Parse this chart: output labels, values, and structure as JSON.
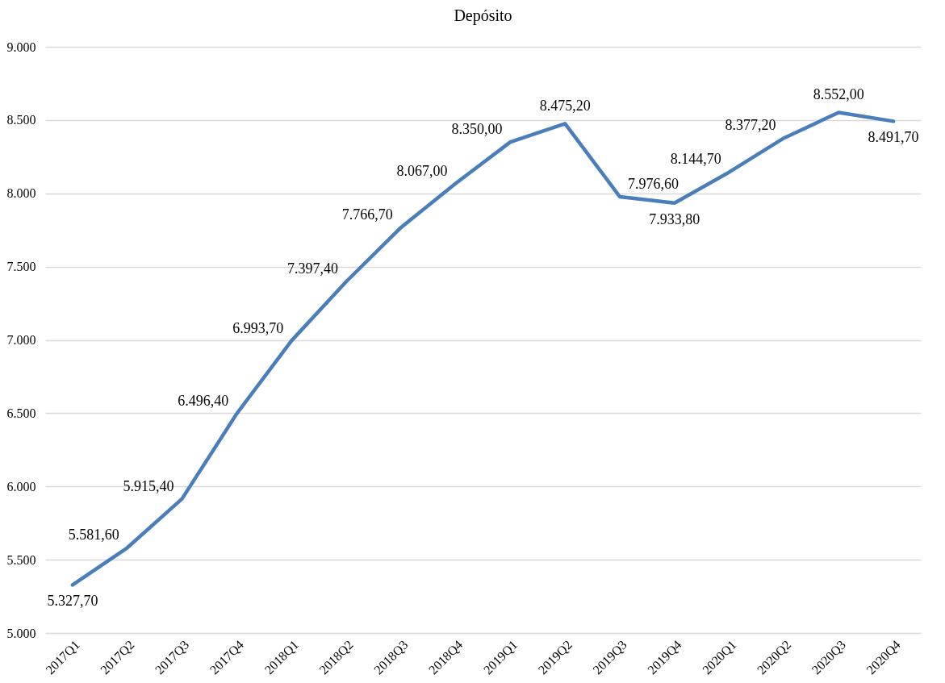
{
  "chart_data": {
    "type": "line",
    "title": "Depósito",
    "categories": [
      "2017Q1",
      "2017Q2",
      "2017Q3",
      "2017Q4",
      "2018Q1",
      "2018Q2",
      "2018Q3",
      "2018Q4",
      "2019Q1",
      "2019Q2",
      "2019Q3",
      "2019Q4",
      "2020Q1",
      "2020Q2",
      "2020Q3",
      "2020Q4"
    ],
    "series": [
      {
        "color": "#4a7ebb",
        "values": [
          5327.7,
          5581.6,
          5915.4,
          6496.4,
          6993.7,
          7397.4,
          7766.7,
          8067.0,
          8350.0,
          8475.2,
          7976.6,
          7933.8,
          8144.7,
          8377.2,
          8552.0,
          8491.7
        ],
        "value_labels": [
          "5.327,70",
          "5.581,60",
          "5.915,40",
          "6.496,40",
          "6.993,70",
          "7.397,40",
          "7.766,70",
          "8.067,00",
          "8.350,00",
          "8.475,20",
          "7.976,60",
          "7.933,80",
          "8.144,70",
          "8.377,20",
          "8.552,00",
          "8.491,70"
        ]
      }
    ],
    "ylim": [
      5000,
      9000
    ],
    "yticks": [
      {
        "value": 5000,
        "label": "5.000"
      },
      {
        "value": 5500,
        "label": "5.500"
      },
      {
        "value": 6000,
        "label": "6.000"
      },
      {
        "value": 6500,
        "label": "6.500"
      },
      {
        "value": 7000,
        "label": "7.000"
      },
      {
        "value": 7500,
        "label": "7.500"
      },
      {
        "value": 8000,
        "label": "8.000"
      },
      {
        "value": 8500,
        "label": "8.500"
      },
      {
        "value": 9000,
        "label": "9.000"
      }
    ],
    "grid": "y",
    "marker": "none",
    "line_style": "solid"
  }
}
